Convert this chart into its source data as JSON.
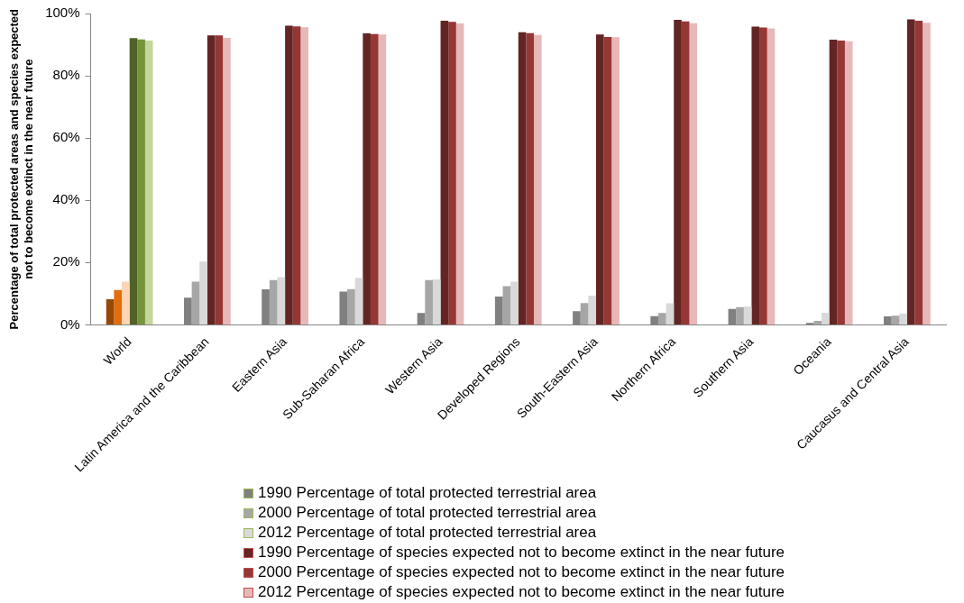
{
  "chart_data": {
    "type": "bar",
    "ylabel": "Percentage of total protected areas and species expected not to become extinct in the near future",
    "categories": [
      "World",
      "Latin America and the Caribbean",
      "Eastern Asia",
      "Sub-Saharan Africa",
      "Western Asia",
      "Developed Regions",
      "South-Eastern Asia",
      "Northern Africa",
      "Southern Asia",
      "Oceania",
      "Caucasus and Central Asia"
    ],
    "ylim": [
      0,
      100
    ],
    "yticks": [
      {
        "value": 0,
        "label": "0%"
      },
      {
        "value": 20,
        "label": "20%"
      },
      {
        "value": 40,
        "label": "40%"
      },
      {
        "value": 60,
        "label": "60%"
      },
      {
        "value": 80,
        "label": "80%"
      },
      {
        "value": 100,
        "label": "100%"
      }
    ],
    "grid": false,
    "legend": "bottom",
    "series": [
      {
        "name": "1990 Percentage of total protected terrestrial area",
        "color": "#808080",
        "colors": [
          "#974706",
          "#808080",
          "#808080",
          "#808080",
          "#808080",
          "#808080",
          "#808080",
          "#808080",
          "#808080",
          "#808080",
          "#808080"
        ],
        "values": [
          8.2,
          8.7,
          11.4,
          10.7,
          3.8,
          9.1,
          4.4,
          2.8,
          5.1,
          0.6,
          2.7
        ]
      },
      {
        "name": "2000 Percentage of total protected terrestrial area",
        "color": "#a6a6a6",
        "colors": [
          "#e46c0a",
          "#a6a6a6",
          "#a6a6a6",
          "#a6a6a6",
          "#a6a6a6",
          "#a6a6a6",
          "#a6a6a6",
          "#a6a6a6",
          "#a6a6a6",
          "#a6a6a6",
          "#a6a6a6"
        ],
        "values": [
          11.2,
          13.9,
          14.4,
          11.5,
          14.4,
          12.4,
          7.0,
          3.8,
          5.7,
          1.3,
          2.9
        ]
      },
      {
        "name": "2012 Percentage of total protected terrestrial area",
        "color": "#d9d9d9",
        "colors": [
          "#fcd5b5",
          "#d9d9d9",
          "#d9d9d9",
          "#d9d9d9",
          "#d9d9d9",
          "#d9d9d9",
          "#d9d9d9",
          "#d9d9d9",
          "#d9d9d9",
          "#d9d9d9",
          "#d9d9d9"
        ],
        "values": [
          13.9,
          20.3,
          15.3,
          15.1,
          14.6,
          13.9,
          9.4,
          6.9,
          5.9,
          3.9,
          3.6
        ]
      },
      {
        "name": "1990 Percentage of species expected not to become extinct in the near future",
        "color": "#632523",
        "colors": [
          "#4f6228",
          "#632523",
          "#632523",
          "#632523",
          "#632523",
          "#632523",
          "#632523",
          "#632523",
          "#632523",
          "#632523",
          "#632523"
        ],
        "values": [
          92.1,
          93.0,
          96.1,
          93.6,
          97.7,
          94.0,
          93.3,
          98.0,
          95.8,
          91.6,
          98.1
        ]
      },
      {
        "name": "2000 Percentage of species expected not to become extinct in the near future",
        "color": "#953735",
        "colors": [
          "#77933c",
          "#953735",
          "#953735",
          "#953735",
          "#953735",
          "#953735",
          "#953735",
          "#953735",
          "#953735",
          "#953735",
          "#953735"
        ],
        "values": [
          91.7,
          93.0,
          95.9,
          93.4,
          97.3,
          93.7,
          92.5,
          97.5,
          95.5,
          91.3,
          97.7
        ]
      },
      {
        "name": "2012 Percentage of species expected not to become extinct in the near future",
        "color": "#e6b9b8",
        "colors": [
          "#c3d69b",
          "#e6b9b8",
          "#e6b9b8",
          "#e6b9b8",
          "#e6b9b8",
          "#e6b9b8",
          "#e6b9b8",
          "#e6b9b8",
          "#e6b9b8",
          "#e6b9b8",
          "#e6b9b8"
        ],
        "values": [
          91.3,
          92.2,
          95.6,
          93.3,
          96.8,
          93.1,
          92.4,
          96.9,
          95.2,
          91.1,
          97.0
        ]
      }
    ]
  }
}
